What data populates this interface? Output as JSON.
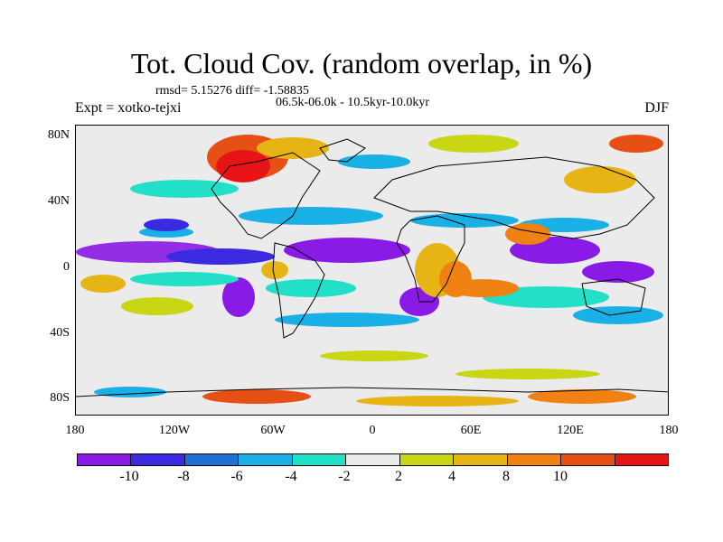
{
  "title": "Tot. Cloud Cov. (random overlap, in %)",
  "stats": "rmsd= 5.15276 diff= -1.58835",
  "period": "06.5k-06.0k - 10.5kyr-10.0kyr",
  "experiment": "Expt = xotko-tejxi",
  "season": "DJF",
  "axes": {
    "y_ticks": [
      "80N",
      "40N",
      "0",
      "40S",
      "80S"
    ],
    "x_ticks": [
      "180",
      "120W",
      "60W",
      "0",
      "60E",
      "120E",
      "180"
    ]
  },
  "colorbar": {
    "colors": [
      "#8a1ae6",
      "#3b2be0",
      "#1f70d6",
      "#19b0e6",
      "#22e0c8",
      "#ebebeb",
      "#c8d614",
      "#e6b414",
      "#f08214",
      "#e65014",
      "#e61414"
    ],
    "labels": [
      "-10",
      "-8",
      "-6",
      "-4",
      "-2",
      "2",
      "4",
      "8",
      "10"
    ]
  }
}
